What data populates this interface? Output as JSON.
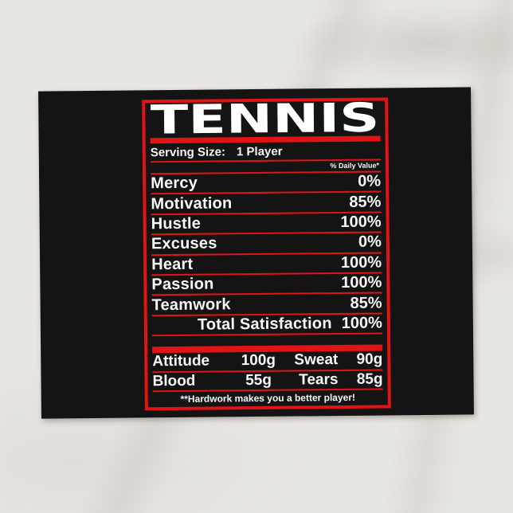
{
  "theme": {
    "accent_red": "#e01415",
    "card_black": "#141414",
    "text_white": "#f7f7f7",
    "surface_marble": "#e8e6e2"
  },
  "label": {
    "title": "TENNIS",
    "serving_size_label": "Serving Size:",
    "serving_size_value": "1 Player",
    "daily_value_header": "% Daily Value*",
    "rows": [
      {
        "name": "Mercy",
        "value": "0%"
      },
      {
        "name": "Motivation",
        "value": "85%"
      },
      {
        "name": "Hustle",
        "value": "100%"
      },
      {
        "name": "Excuses",
        "value": "0%"
      },
      {
        "name": "Heart",
        "value": "100%"
      },
      {
        "name": "Passion",
        "value": "100%"
      },
      {
        "name": "Teamwork",
        "value": "85%"
      },
      {
        "name": "Total Satisfaction",
        "value": "100%"
      }
    ],
    "minerals": [
      {
        "name": "Attitude",
        "value": "100g"
      },
      {
        "name": "Sweat",
        "value": "90g"
      },
      {
        "name": "Blood",
        "value": "55g"
      },
      {
        "name": "Tears",
        "value": "85g"
      }
    ],
    "footnote": "**Hardwork makes you a better player!"
  }
}
